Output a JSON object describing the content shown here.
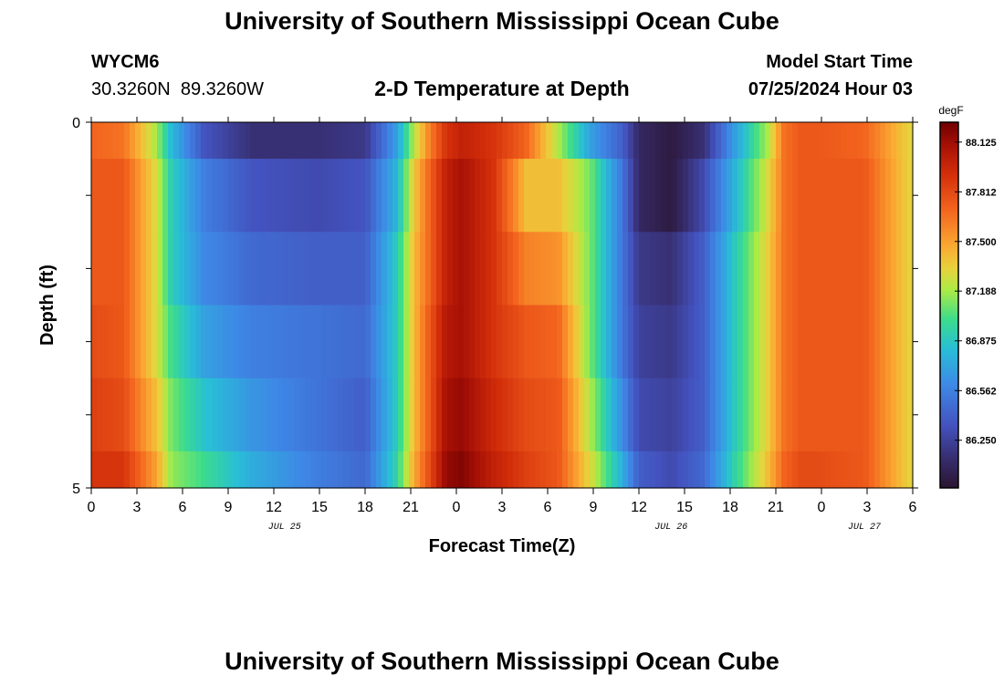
{
  "header": {
    "title": "University of Southern Mississippi Ocean Cube",
    "station_id": "WYCM6",
    "coordinates": "30.3260N  89.3260W",
    "plot_title": "2-D Temperature at Depth",
    "model_start_label": "Model Start Time",
    "model_start_value": "07/25/2024 Hour 03"
  },
  "footer": {
    "title": "University of Southern Mississippi Ocean Cube"
  },
  "chart_data": {
    "type": "heatmap",
    "title": "2-D Temperature at Depth",
    "xlabel": "Forecast Time(Z)",
    "ylabel": "Depth (ft)",
    "x_hours": [
      0,
      51
    ],
    "y_range": [
      0,
      5
    ],
    "y_tick_labels": [
      "0",
      "5"
    ],
    "x_tick_labels": [
      "0",
      "3",
      "6",
      "9",
      "12",
      "15",
      "18",
      "21",
      "0",
      "3",
      "6",
      "9",
      "12",
      "15",
      "18",
      "21",
      "0",
      "3",
      "6"
    ],
    "date_labels": [
      "JUL 25",
      "JUL 26",
      "JUL 27"
    ],
    "colorbar": {
      "unit": "degF",
      "min": 85.95,
      "max": 88.25,
      "tick_labels": [
        "88.125",
        "87.812",
        "87.500",
        "87.188",
        "86.875",
        "86.562",
        "86.250"
      ]
    },
    "depth_layers": [
      "0-0.5",
      "0.5-1.5",
      "1.5-2.5",
      "2.5-3.5",
      "3.5-4.5",
      "4.5-5"
    ],
    "time_keys": [
      0,
      2,
      4,
      5,
      7,
      10,
      14,
      17,
      19,
      20,
      21,
      22,
      23,
      25,
      27,
      29,
      31,
      33,
      34,
      36,
      38,
      40,
      42,
      43,
      44,
      45,
      48,
      51
    ],
    "temperatures_degF": [
      [
        87.7,
        87.65,
        87.2,
        86.8,
        86.35,
        86.15,
        86.15,
        86.2,
        86.7,
        87.2,
        87.6,
        87.9,
        88.0,
        87.9,
        87.7,
        87.2,
        86.7,
        86.4,
        86.1,
        86.0,
        86.15,
        86.7,
        87.2,
        87.65,
        87.75,
        87.75,
        87.7,
        87.3
      ],
      [
        87.75,
        87.75,
        87.3,
        86.9,
        86.55,
        86.35,
        86.3,
        86.35,
        86.8,
        87.35,
        87.7,
        88.0,
        88.1,
        87.9,
        87.4,
        87.4,
        87.1,
        86.5,
        86.1,
        86.0,
        86.3,
        86.8,
        87.3,
        87.65,
        87.75,
        87.75,
        87.75,
        87.3
      ],
      [
        87.75,
        87.75,
        87.3,
        86.9,
        86.6,
        86.45,
        86.4,
        86.4,
        86.9,
        87.4,
        87.7,
        88.0,
        88.1,
        87.9,
        87.6,
        87.55,
        87.1,
        86.5,
        86.2,
        86.15,
        86.4,
        86.9,
        87.35,
        87.65,
        87.75,
        87.75,
        87.75,
        87.3
      ],
      [
        87.8,
        87.75,
        87.3,
        87.0,
        86.7,
        86.55,
        86.5,
        86.45,
        86.9,
        87.4,
        87.75,
        88.05,
        88.1,
        87.9,
        87.75,
        87.7,
        87.1,
        86.5,
        86.25,
        86.2,
        86.4,
        86.9,
        87.35,
        87.65,
        87.75,
        87.75,
        87.75,
        87.3
      ],
      [
        87.85,
        87.8,
        87.4,
        87.1,
        86.85,
        86.65,
        86.5,
        86.4,
        86.9,
        87.4,
        87.75,
        88.1,
        88.15,
        87.95,
        87.8,
        87.75,
        87.2,
        86.6,
        86.3,
        86.25,
        86.4,
        86.9,
        87.35,
        87.65,
        87.75,
        87.75,
        87.75,
        87.3
      ],
      [
        87.9,
        87.9,
        87.5,
        87.15,
        87.0,
        86.75,
        86.55,
        86.45,
        86.95,
        87.45,
        87.8,
        88.15,
        88.2,
        88.0,
        87.85,
        87.75,
        87.3,
        86.75,
        86.4,
        86.3,
        86.45,
        86.95,
        87.4,
        87.7,
        87.8,
        87.8,
        87.75,
        87.3
      ]
    ]
  }
}
